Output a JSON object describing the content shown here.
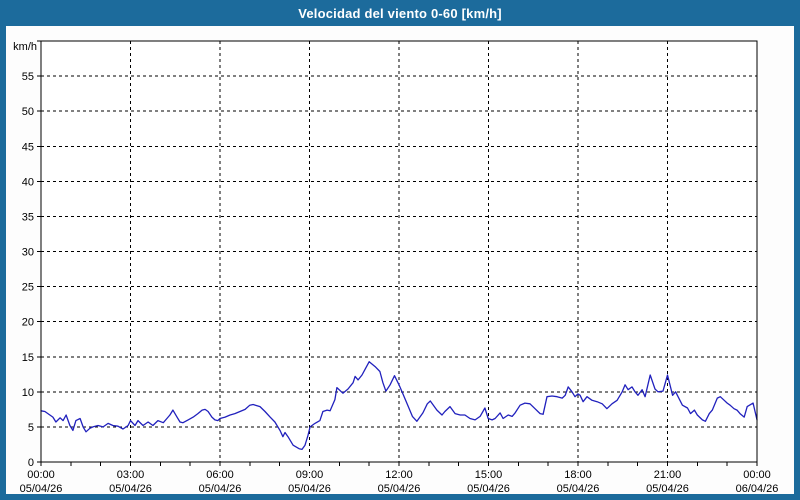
{
  "window": {
    "title": "Velocidad del viento 0-60 [km/h]"
  },
  "colors": {
    "frame_blue": "#1c6b9c",
    "title_text": "#ffffff",
    "canvas_bg": "#fdfdfd",
    "plot_bg": "#ffffff",
    "grid_line": "#000000",
    "axis_text": "#000000",
    "series_line": "#2121bd"
  },
  "chart_data": {
    "type": "line",
    "title": "Velocidad del viento 0-60 [km/h]",
    "y_unit_label": "km/h",
    "ylabel": "km/h",
    "xlabel": "",
    "ylim": [
      0,
      60
    ],
    "y_tick_step": 5,
    "y_tick_labels": [
      0,
      5,
      10,
      15,
      20,
      25,
      30,
      35,
      40,
      45,
      50,
      55
    ],
    "xlim_hours": [
      0,
      24
    ],
    "x_minor_tick_every_hours": 1,
    "x_major_tick_every_hours": 3,
    "grid": {
      "horizontal": "dashed every 5 km/h",
      "vertical": "dashed every 3 h",
      "style": "dashed"
    },
    "legend": "none",
    "x_ticks": [
      {
        "hour": 0,
        "time": "00:00",
        "date": "05/04/26"
      },
      {
        "hour": 3,
        "time": "03:00",
        "date": "05/04/26"
      },
      {
        "hour": 6,
        "time": "06:00",
        "date": "05/04/26"
      },
      {
        "hour": 9,
        "time": "09:00",
        "date": "05/04/26"
      },
      {
        "hour": 12,
        "time": "12:00",
        "date": "05/04/26"
      },
      {
        "hour": 15,
        "time": "15:00",
        "date": "05/04/26"
      },
      {
        "hour": 18,
        "time": "18:00",
        "date": "05/04/26"
      },
      {
        "hour": 21,
        "time": "21:00",
        "date": "05/04/26"
      },
      {
        "hour": 24,
        "time": "00:00",
        "date": "06/04/26"
      }
    ],
    "series": [
      {
        "name": "wind-speed-kmh",
        "color": "#2121bd",
        "points": [
          [
            0.0,
            7.3
          ],
          [
            0.13,
            7.2
          ],
          [
            0.23,
            6.9
          ],
          [
            0.4,
            6.4
          ],
          [
            0.5,
            5.7
          ],
          [
            0.64,
            6.3
          ],
          [
            0.74,
            5.9
          ],
          [
            0.84,
            6.7
          ],
          [
            0.97,
            5.2
          ],
          [
            1.07,
            4.5
          ],
          [
            1.17,
            5.9
          ],
          [
            1.31,
            6.2
          ],
          [
            1.41,
            5.0
          ],
          [
            1.51,
            4.3
          ],
          [
            1.64,
            4.8
          ],
          [
            1.74,
            5.0
          ],
          [
            1.91,
            5.2
          ],
          [
            2.08,
            5.0
          ],
          [
            2.25,
            5.5
          ],
          [
            2.41,
            5.2
          ],
          [
            2.58,
            5.1
          ],
          [
            2.75,
            4.7
          ],
          [
            2.92,
            5.2
          ],
          [
            3.0,
            5.9
          ],
          [
            3.15,
            5.2
          ],
          [
            3.25,
            5.9
          ],
          [
            3.42,
            5.2
          ],
          [
            3.59,
            5.7
          ],
          [
            3.75,
            5.2
          ],
          [
            3.92,
            5.9
          ],
          [
            4.1,
            5.6
          ],
          [
            4.22,
            6.2
          ],
          [
            4.32,
            6.7
          ],
          [
            4.42,
            7.4
          ],
          [
            4.56,
            6.4
          ],
          [
            4.66,
            5.7
          ],
          [
            4.76,
            5.6
          ],
          [
            4.93,
            6.0
          ],
          [
            5.1,
            6.4
          ],
          [
            5.26,
            6.9
          ],
          [
            5.4,
            7.4
          ],
          [
            5.5,
            7.5
          ],
          [
            5.6,
            7.2
          ],
          [
            5.73,
            6.4
          ],
          [
            5.83,
            6.0
          ],
          [
            5.93,
            5.9
          ],
          [
            6.0,
            6.2
          ],
          [
            6.17,
            6.4
          ],
          [
            6.34,
            6.7
          ],
          [
            6.5,
            6.9
          ],
          [
            6.67,
            7.2
          ],
          [
            6.84,
            7.5
          ],
          [
            7.0,
            8.1
          ],
          [
            7.11,
            8.2
          ],
          [
            7.34,
            7.9
          ],
          [
            7.51,
            7.2
          ],
          [
            7.68,
            6.4
          ],
          [
            7.84,
            5.7
          ],
          [
            8.01,
            4.5
          ],
          [
            8.11,
            3.6
          ],
          [
            8.18,
            4.2
          ],
          [
            8.28,
            3.6
          ],
          [
            8.45,
            2.4
          ],
          [
            8.65,
            1.9
          ],
          [
            8.75,
            1.8
          ],
          [
            8.85,
            2.4
          ],
          [
            8.95,
            3.8
          ],
          [
            9.02,
            5.0
          ],
          [
            9.18,
            5.5
          ],
          [
            9.35,
            5.9
          ],
          [
            9.45,
            7.2
          ],
          [
            9.59,
            7.4
          ],
          [
            9.69,
            7.3
          ],
          [
            9.85,
            8.9
          ],
          [
            9.92,
            10.6
          ],
          [
            10.12,
            9.8
          ],
          [
            10.29,
            10.4
          ],
          [
            10.46,
            11.3
          ],
          [
            10.53,
            12.2
          ],
          [
            10.63,
            11.7
          ],
          [
            10.76,
            12.4
          ],
          [
            10.86,
            13.2
          ],
          [
            11.0,
            14.3
          ],
          [
            11.2,
            13.6
          ],
          [
            11.36,
            12.9
          ],
          [
            11.46,
            11.3
          ],
          [
            11.56,
            10.1
          ],
          [
            11.7,
            11.0
          ],
          [
            11.85,
            12.3
          ],
          [
            12.0,
            11.0
          ],
          [
            12.15,
            9.5
          ],
          [
            12.3,
            8.0
          ],
          [
            12.45,
            6.5
          ],
          [
            12.6,
            5.8
          ],
          [
            12.8,
            7.0
          ],
          [
            12.95,
            8.3
          ],
          [
            13.05,
            8.7
          ],
          [
            13.27,
            7.4
          ],
          [
            13.44,
            6.7
          ],
          [
            13.54,
            7.2
          ],
          [
            13.71,
            7.9
          ],
          [
            13.88,
            6.9
          ],
          [
            14.05,
            6.7
          ],
          [
            14.21,
            6.7
          ],
          [
            14.38,
            6.2
          ],
          [
            14.55,
            6.0
          ],
          [
            14.72,
            6.5
          ],
          [
            14.88,
            7.7
          ],
          [
            14.99,
            6.2
          ],
          [
            15.12,
            6.0
          ],
          [
            15.22,
            6.2
          ],
          [
            15.39,
            7.0
          ],
          [
            15.49,
            6.2
          ],
          [
            15.66,
            6.7
          ],
          [
            15.79,
            6.5
          ],
          [
            15.89,
            7.0
          ],
          [
            16.06,
            8.1
          ],
          [
            16.22,
            8.4
          ],
          [
            16.39,
            8.3
          ],
          [
            16.56,
            7.6
          ],
          [
            16.73,
            6.9
          ],
          [
            16.83,
            6.8
          ],
          [
            16.96,
            9.3
          ],
          [
            17.13,
            9.4
          ],
          [
            17.3,
            9.3
          ],
          [
            17.47,
            9.1
          ],
          [
            17.57,
            9.5
          ],
          [
            17.67,
            10.7
          ],
          [
            17.8,
            10.0
          ],
          [
            17.9,
            9.3
          ],
          [
            18.0,
            9.7
          ],
          [
            18.07,
            9.5
          ],
          [
            18.17,
            8.6
          ],
          [
            18.3,
            9.3
          ],
          [
            18.47,
            8.8
          ],
          [
            18.64,
            8.6
          ],
          [
            18.81,
            8.3
          ],
          [
            18.97,
            7.6
          ],
          [
            19.14,
            8.3
          ],
          [
            19.31,
            8.8
          ],
          [
            19.48,
            10.0
          ],
          [
            19.58,
            11.0
          ],
          [
            19.68,
            10.3
          ],
          [
            19.81,
            10.7
          ],
          [
            19.91,
            10.0
          ],
          [
            20.01,
            9.5
          ],
          [
            20.15,
            10.3
          ],
          [
            20.25,
            9.3
          ],
          [
            20.42,
            12.4
          ],
          [
            20.58,
            10.4
          ],
          [
            20.68,
            10.0
          ],
          [
            20.85,
            10.1
          ],
          [
            21.0,
            12.4
          ],
          [
            21.17,
            9.5
          ],
          [
            21.27,
            10.0
          ],
          [
            21.5,
            8.1
          ],
          [
            21.67,
            7.7
          ],
          [
            21.77,
            6.9
          ],
          [
            21.9,
            7.4
          ],
          [
            22.0,
            6.7
          ],
          [
            22.17,
            6.0
          ],
          [
            22.27,
            5.8
          ],
          [
            22.4,
            6.9
          ],
          [
            22.5,
            7.4
          ],
          [
            22.67,
            9.1
          ],
          [
            22.77,
            9.3
          ],
          [
            22.9,
            8.8
          ],
          [
            23.0,
            8.4
          ],
          [
            23.1,
            8.1
          ],
          [
            23.23,
            7.6
          ],
          [
            23.33,
            7.4
          ],
          [
            23.43,
            6.9
          ],
          [
            23.57,
            6.4
          ],
          [
            23.67,
            7.9
          ],
          [
            23.87,
            8.4
          ],
          [
            24.0,
            6.0
          ]
        ]
      }
    ]
  }
}
